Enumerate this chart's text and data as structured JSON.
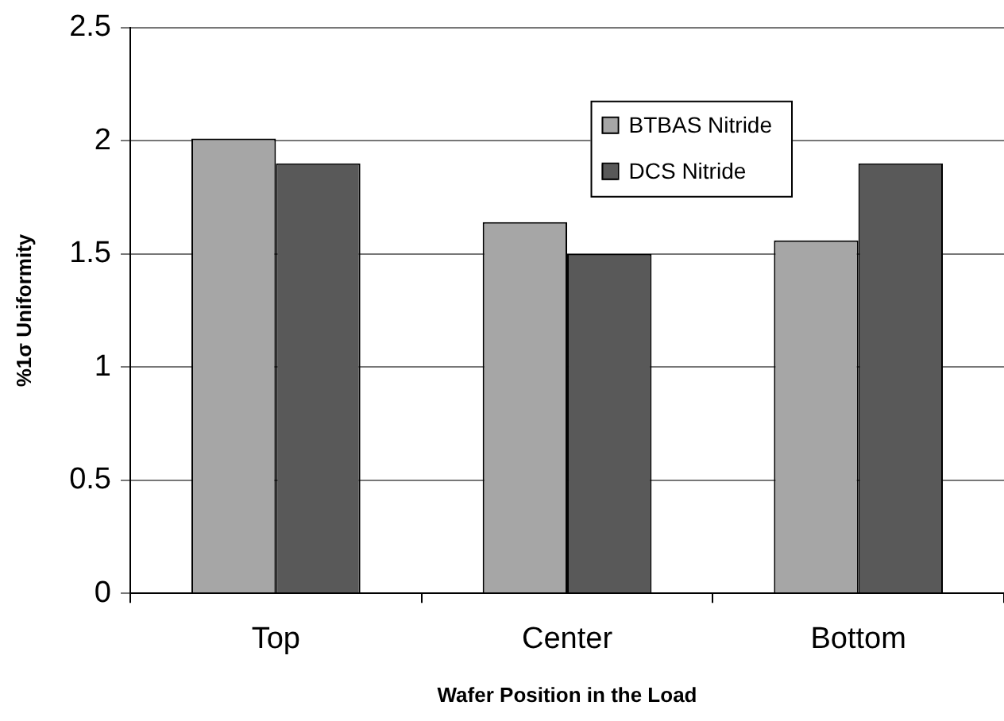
{
  "chart_data": {
    "type": "bar",
    "xlabel": "Wafer Position in the Load",
    "ylabel": "%1σ Uniformity",
    "categories": [
      "Top",
      "Center",
      "Bottom"
    ],
    "series": [
      {
        "name": "BTBAS Nitride",
        "color": "#a6a6a6",
        "values": [
          2.01,
          1.64,
          1.56
        ]
      },
      {
        "name": "DCS Nitride",
        "color": "#595959",
        "values": [
          1.9,
          1.5,
          1.9
        ]
      }
    ],
    "ylim": [
      0,
      2.5
    ],
    "yticks": [
      0,
      0.5,
      1,
      1.5,
      2,
      2.5
    ],
    "grid": "y",
    "legend": "top right"
  }
}
